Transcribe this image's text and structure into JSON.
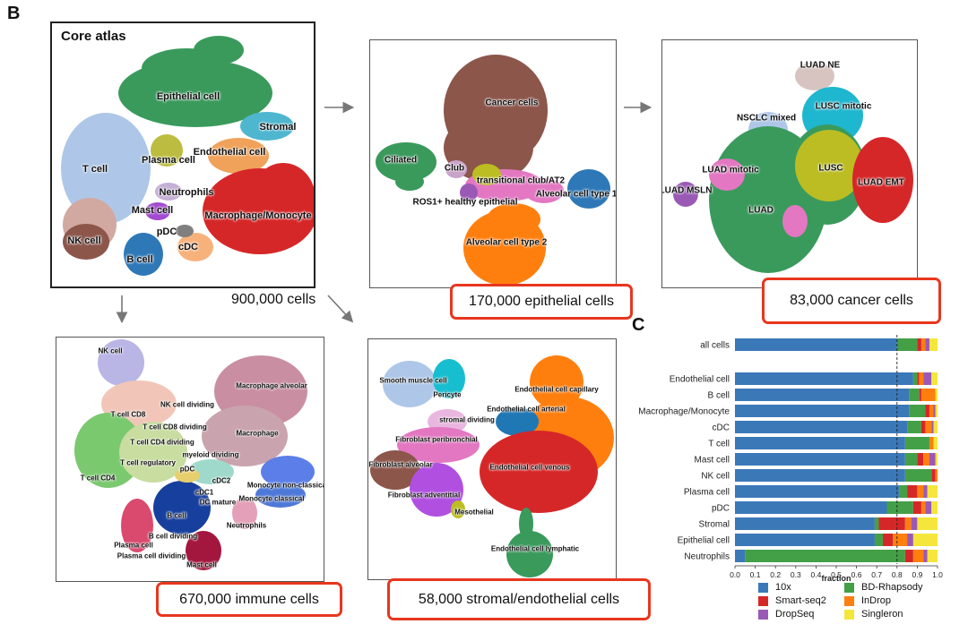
{
  "panel_b": {
    "letter": "B",
    "core": {
      "title": "Core atlas",
      "count": "900,000 cells",
      "labels": [
        "Epithelial cell",
        "Stromal",
        "Endothelial cell",
        "Plasma cell",
        "T cell",
        "Neutrophils",
        "Mast cell",
        "Macrophage/Monocyte",
        "pDC",
        "NK cell",
        "cDC",
        "B cell"
      ]
    },
    "epithelial": {
      "count": "170,000 epithelial cells",
      "labels": [
        "Cancer cells",
        "Ciliated",
        "Club",
        "transitional club/AT2",
        "Alveolar cell type 1",
        "ROS1+ healthy epithelial",
        "Alveolar cell type 2"
      ]
    },
    "cancer": {
      "count": "83,000 cancer cells",
      "labels": [
        "LUAD NE",
        "LUSC mitotic",
        "NSCLC mixed",
        "LUSC",
        "LUAD mitotic",
        "LUAD EMT",
        "LUAD MSLN",
        "LUAD"
      ]
    },
    "immune": {
      "count": "670,000 immune cells",
      "labels": [
        "NK cell",
        "Macrophage alveolar",
        "NK cell dividing",
        "T cell CD8",
        "T cell CD8 dividing",
        "T cell CD4 dividing",
        "Macrophage",
        "myeloid dividing",
        "T cell regulatory",
        "pDC",
        "T cell CD4",
        "cDC2",
        "Monocyte non-classical",
        "cDC1",
        "DC mature",
        "Monocyte classical",
        "B cell",
        "Neutrophils",
        "B cell dividing",
        "Plasma cell",
        "Plasma cell dividing",
        "Mast cell"
      ]
    },
    "stromal": {
      "count": "58,000 stromal/endothelial cells",
      "labels": [
        "Smooth muscle cell",
        "Pericyte",
        "Endothelial cell capillary",
        "stromal dividing",
        "Endothelial cell arterial",
        "Fibroblast peribronchial",
        "Fibroblast alveolar",
        "Endothelial cell venous",
        "Fibroblast adventitial",
        "Mesothelial",
        "Endothelial cell lymphatic"
      ]
    }
  },
  "panel_c": {
    "letter": "C",
    "chart_data": {
      "type": "bar",
      "orientation": "horizontal",
      "stacked": true,
      "xlabel": "fraction",
      "xlim": [
        0,
        1
      ],
      "xticks": [
        "0.0",
        "0.1",
        "0.2",
        "0.3",
        "0.4",
        "0.5",
        "0.6",
        "0.7",
        "0.8",
        "0.9",
        "1.0"
      ],
      "reference_line_x": 0.8,
      "categories": [
        "all cells",
        "Endothelial cell",
        "B cell",
        "Macrophage/Monocyte",
        "cDC",
        "T cell",
        "Mast cell",
        "NK cell",
        "Plasma cell",
        "pDC",
        "Stromal",
        "Epithelial cell",
        "Neutrophils"
      ],
      "series": [
        {
          "name": "10x",
          "color": "#3b78b8",
          "values": [
            0.8,
            0.88,
            0.86,
            0.86,
            0.85,
            0.84,
            0.84,
            0.84,
            0.81,
            0.75,
            0.69,
            0.69,
            0.05
          ]
        },
        {
          "name": "BD-Rhapsody",
          "color": "#43a047",
          "values": [
            0.1,
            0.02,
            0.05,
            0.08,
            0.07,
            0.12,
            0.06,
            0.13,
            0.04,
            0.13,
            0.02,
            0.04,
            0.79
          ]
        },
        {
          "name": "Smart-seq2",
          "color": "#d62728",
          "values": [
            0.02,
            0.01,
            0.01,
            0.02,
            0.02,
            0.0,
            0.03,
            0.02,
            0.05,
            0.04,
            0.13,
            0.05,
            0.04
          ]
        },
        {
          "name": "InDrop",
          "color": "#ff7f0e",
          "values": [
            0.02,
            0.02,
            0.07,
            0.02,
            0.03,
            0.02,
            0.03,
            0.01,
            0.03,
            0.02,
            0.03,
            0.07,
            0.05
          ]
        },
        {
          "name": "DropSeq",
          "color": "#9b59b6",
          "values": [
            0.02,
            0.04,
            0.0,
            0.01,
            0.01,
            0.0,
            0.03,
            0.0,
            0.02,
            0.03,
            0.03,
            0.03,
            0.02
          ]
        },
        {
          "name": "Singleron",
          "color": "#f4e63a",
          "values": [
            0.04,
            0.03,
            0.01,
            0.01,
            0.02,
            0.02,
            0.01,
            0.0,
            0.05,
            0.03,
            0.1,
            0.12,
            0.05
          ]
        }
      ]
    }
  }
}
